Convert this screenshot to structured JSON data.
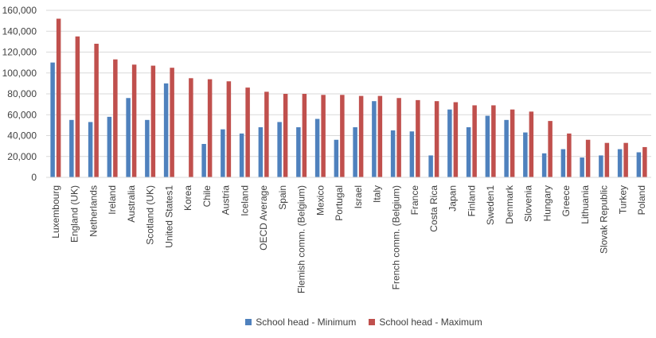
{
  "chart_data": {
    "type": "bar",
    "title": "",
    "xlabel": "",
    "ylabel": "",
    "ylim": [
      0,
      160000
    ],
    "yticks": [
      0,
      20000,
      40000,
      60000,
      80000,
      100000,
      120000,
      140000,
      160000
    ],
    "ytick_labels": [
      "0",
      "20,000",
      "40,000",
      "60,000",
      "80,000",
      "100,000",
      "120,000",
      "140,000",
      "160,000"
    ],
    "grid": true,
    "legend_position": "bottom",
    "categories": [
      "Luxembourg",
      "England (UK)",
      "Netherlands",
      "Ireland",
      "Australia",
      "Scotland (UK)",
      "United States1",
      "Korea",
      "Chile",
      "Austria",
      "Iceland",
      "OECD Average",
      "Spain",
      "Flemish comm. (Belgium)",
      "Mexico",
      "Portugal",
      "Israel",
      "Italy",
      "French comm. (Belgium)",
      "France",
      "Costa Rica",
      "Japan",
      "Finland",
      "Sweden1",
      "Denmark",
      "Slovenia",
      "Hungary",
      "Greece",
      "Lithuania",
      "Slovak Republic",
      "Turkey",
      "Poland"
    ],
    "series": [
      {
        "name": "School head - Minimum",
        "color": "#4f81bd",
        "values": [
          110000,
          55000,
          53000,
          58000,
          76000,
          55000,
          90000,
          null,
          32000,
          46000,
          42000,
          48000,
          53000,
          48000,
          56000,
          36000,
          48000,
          73000,
          45000,
          44000,
          21000,
          65000,
          48000,
          59000,
          55000,
          43000,
          23000,
          27000,
          19000,
          21000,
          27000,
          24000
        ]
      },
      {
        "name": "School head - Maximum",
        "color": "#c0504d",
        "values": [
          152000,
          135000,
          128000,
          113000,
          108000,
          107000,
          105000,
          95000,
          94000,
          92000,
          86000,
          82000,
          80000,
          80000,
          79000,
          79000,
          78000,
          78000,
          76000,
          74000,
          73000,
          72000,
          69000,
          69000,
          65000,
          63000,
          54000,
          42000,
          36000,
          33000,
          33000,
          29000
        ]
      }
    ]
  }
}
